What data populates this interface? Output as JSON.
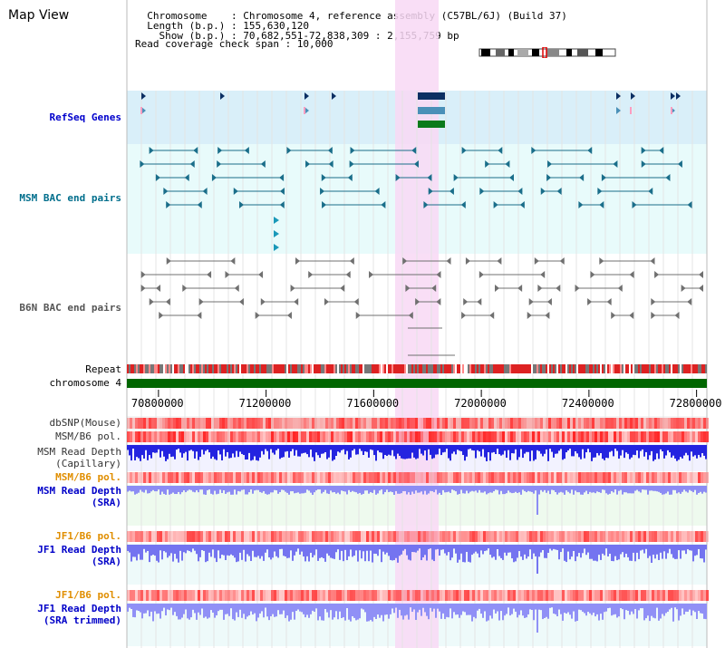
{
  "app_title": "Map View",
  "header": {
    "info_lines": [
      "  Chromosome    : Chromosome 4, reference assembly (C57BL/6J) (Build 37)",
      "  Length (b.p.) : 155,630,120",
      "    Show (b.p.) : 70,682,551-72,838,309 : 2,155,759 bp",
      "Read coverage check span : 10,000"
    ]
  },
  "colors": {
    "refseq_bg": "#d9eff9",
    "bac_bg": "#e8fbfb",
    "highlight": "#f8d8f4",
    "msm_label": "#006e8c",
    "b6n_label": "#555555",
    "refseq_label": "#0000cc",
    "orange_label": "#e08e00",
    "blue_label": "#0000c8",
    "chromosome_green": "#006600"
  },
  "tracks": {
    "refseq": {
      "label": "RefSeq Genes"
    },
    "msm_bac": {
      "label": "MSM BAC end pairs"
    },
    "b6n_bac": {
      "label": "B6N BAC end pairs"
    },
    "repeat": {
      "label": "Repeat"
    },
    "chromosome": {
      "label": "chromosome 4"
    },
    "dbsnp": {
      "label": "dbSNP(Mouse)"
    },
    "msm_b6_pol_1": {
      "label": "MSM/B6 pol."
    },
    "msm_read_depth_cap": {
      "label_line1": "MSM Read Depth",
      "label_line2": "(Capillary)"
    },
    "msm_b6_pol_2": {
      "label": "MSM/B6 pol."
    },
    "msm_read_depth_sra": {
      "label_line1": "MSM Read Depth",
      "label_line2": "(SRA)"
    },
    "jf1_b6_pol_1": {
      "label": "JF1/B6 pol."
    },
    "jf1_read_depth_sra": {
      "label_line1": "JF1 Read Depth",
      "label_line2": "(SRA)"
    },
    "jf1_b6_pol_2": {
      "label": "JF1/B6 pol."
    },
    "jf1_read_depth_trim": {
      "label_line1": "JF1 Read Depth",
      "label_line2": "(SRA trimmed)"
    }
  },
  "axis": {
    "ticks": [
      "70800000",
      "71200000",
      "71600000",
      "72000000",
      "72400000",
      "72800000"
    ],
    "tick_values": [
      70800000,
      71200000,
      71600000,
      72000000,
      72400000,
      72800000
    ],
    "range_start": 70682551,
    "range_end": 72838309
  }
}
